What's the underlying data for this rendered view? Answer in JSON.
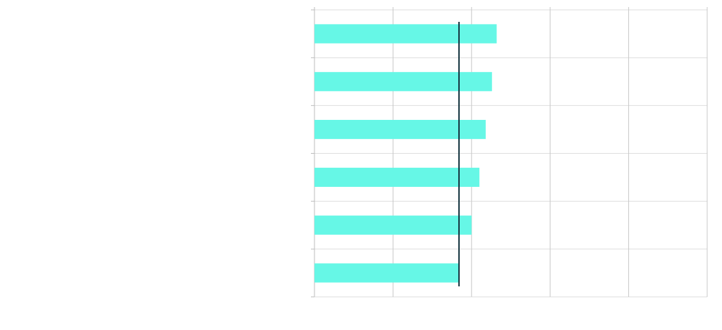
{
  "chart_data": {
    "type": "bar",
    "orientation": "horizontal",
    "categories": [
      "",
      "",
      "",
      "",
      "",
      ""
    ],
    "values": [
      1.16,
      1.13,
      1.09,
      1.05,
      1.0,
      0.92
    ],
    "reference_line": 0.92,
    "xlim": [
      0,
      2.5
    ],
    "x_gridlines": 5,
    "grid": true,
    "title": "",
    "xlabel": "",
    "ylabel": "",
    "colors": {
      "bar": "#66f7e6",
      "reference_line": "#153540",
      "grid": "#dedede",
      "axis": "#c8c8c8"
    }
  }
}
